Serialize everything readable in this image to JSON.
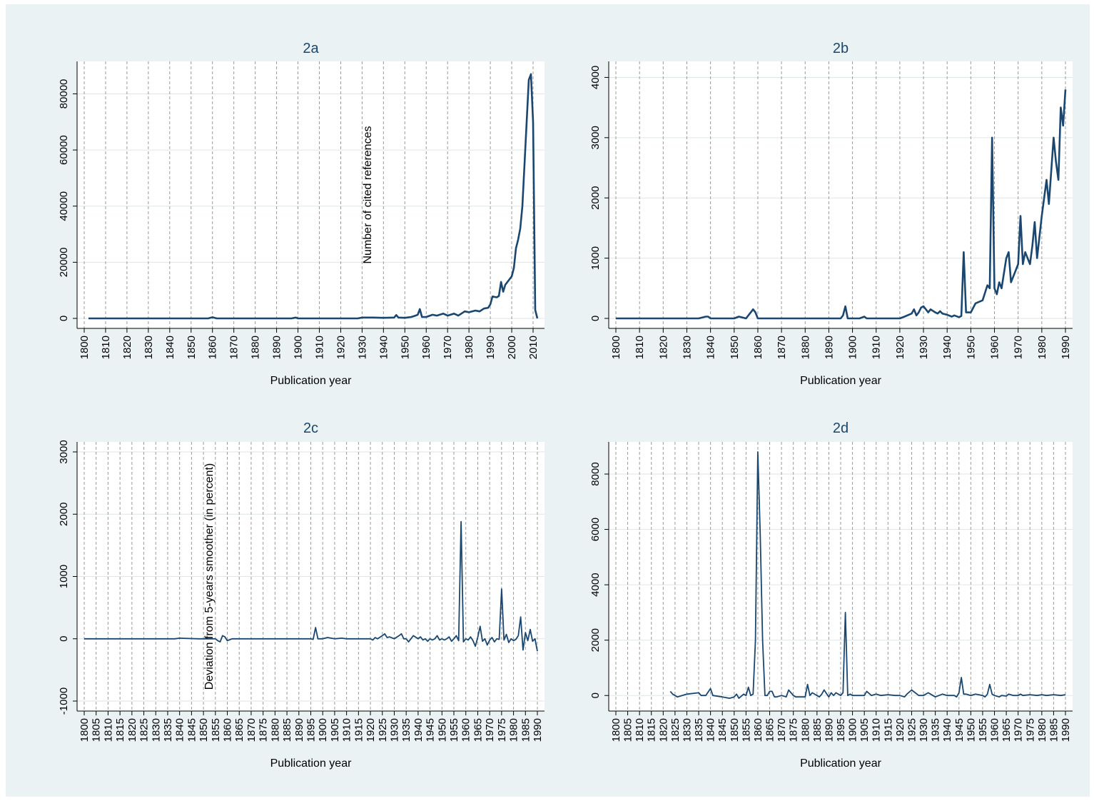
{
  "figure": {
    "background": "#eaf2f3",
    "plot_background": "#ffffff",
    "line_color": "#1a476f",
    "grid_color": "#dfe6e8"
  },
  "chart_data": [
    {
      "id": "2a",
      "type": "line",
      "title": "2a",
      "xlabel": "Publication year",
      "ylabel": "Number of cited references",
      "xlim": [
        1800,
        2012
      ],
      "ylim": [
        0,
        88000
      ],
      "xticks": [
        1800,
        1810,
        1820,
        1830,
        1840,
        1850,
        1860,
        1870,
        1880,
        1890,
        1900,
        1910,
        1920,
        1930,
        1940,
        1950,
        1960,
        1970,
        1980,
        1990,
        2000,
        2010
      ],
      "yticks": [
        0,
        20000,
        40000,
        60000,
        80000
      ],
      "vgrid_dashed": true,
      "series": [
        {
          "x": [
            1802,
            1850,
            1858,
            1860,
            1862,
            1897,
            1899,
            1900,
            1928,
            1930,
            1935,
            1940,
            1945,
            1946,
            1947,
            1950,
            1953,
            1955,
            1956,
            1957,
            1958,
            1960,
            1963,
            1965,
            1968,
            1970,
            1973,
            1975,
            1978,
            1980,
            1983,
            1985,
            1987,
            1989,
            1990,
            1991,
            1993,
            1994,
            1995,
            1996,
            1997,
            1998,
            1999,
            2000,
            2001,
            2002,
            2003,
            2004,
            2005,
            2006,
            2007,
            2008,
            2009,
            2010,
            2011,
            2012
          ],
          "y": [
            0,
            0,
            0,
            400,
            0,
            0,
            300,
            0,
            0,
            300,
            300,
            200,
            300,
            1200,
            300,
            200,
            500,
            1000,
            1300,
            3300,
            500,
            500,
            1300,
            1000,
            1700,
            1000,
            1700,
            1000,
            2500,
            2200,
            2800,
            2500,
            3500,
            3800,
            5000,
            7800,
            7500,
            8000,
            13000,
            9500,
            12000,
            13000,
            14000,
            15000,
            18000,
            25000,
            28000,
            32000,
            40000,
            55000,
            70000,
            85000,
            87000,
            70000,
            3000,
            0
          ]
        }
      ]
    },
    {
      "id": "2b",
      "type": "line",
      "title": "2b",
      "xlabel": "Publication year",
      "ylabel": "",
      "xlim": [
        1800,
        1990
      ],
      "ylim": [
        0,
        4100
      ],
      "xticks": [
        1800,
        1810,
        1820,
        1830,
        1840,
        1850,
        1860,
        1870,
        1880,
        1890,
        1900,
        1910,
        1920,
        1930,
        1940,
        1950,
        1960,
        1970,
        1980,
        1990
      ],
      "yticks": [
        0,
        1000,
        2000,
        3000,
        4000
      ],
      "vgrid_dashed": true,
      "series": [
        {
          "x": [
            1800,
            1804,
            1805,
            1810,
            1820,
            1835,
            1838,
            1839,
            1840,
            1845,
            1850,
            1852,
            1855,
            1857,
            1858,
            1859,
            1860,
            1861,
            1865,
            1870,
            1875,
            1880,
            1885,
            1890,
            1895,
            1896,
            1897,
            1898,
            1899,
            1900,
            1903,
            1905,
            1906,
            1910,
            1915,
            1920,
            1922,
            1925,
            1926,
            1927,
            1928,
            1929,
            1930,
            1932,
            1933,
            1935,
            1936,
            1937,
            1938,
            1940,
            1942,
            1943,
            1945,
            1946,
            1947,
            1948,
            1950,
            1952,
            1955,
            1957,
            1958,
            1959,
            1960,
            1961,
            1962,
            1963,
            1965,
            1966,
            1967,
            1969,
            1970,
            1971,
            1972,
            1973,
            1975,
            1976,
            1977,
            1978,
            1980,
            1982,
            1983,
            1985,
            1986,
            1987,
            1988,
            1989,
            1990
          ],
          "y": [
            0,
            0,
            0,
            0,
            0,
            0,
            30,
            30,
            0,
            0,
            0,
            30,
            0,
            100,
            150,
            100,
            0,
            0,
            0,
            0,
            0,
            0,
            0,
            0,
            0,
            50,
            200,
            0,
            0,
            0,
            0,
            30,
            0,
            0,
            0,
            0,
            30,
            80,
            150,
            50,
            100,
            180,
            200,
            100,
            150,
            100,
            80,
            120,
            80,
            60,
            30,
            50,
            20,
            40,
            1100,
            100,
            100,
            250,
            300,
            550,
            500,
            3000,
            500,
            400,
            600,
            500,
            1000,
            1100,
            600,
            800,
            900,
            1700,
            900,
            1100,
            900,
            1200,
            1600,
            1000,
            1700,
            2300,
            1900,
            3000,
            2600,
            2300,
            3500,
            3200,
            3800
          ]
        }
      ]
    },
    {
      "id": "2c",
      "type": "line",
      "title": "2c",
      "xlabel": "Publication year",
      "ylabel": "Deviation from 5-years smoother (in percent)",
      "xlim": [
        1800,
        1990
      ],
      "ylim": [
        -1000,
        3000
      ],
      "xticks": [
        1800,
        1805,
        1810,
        1815,
        1820,
        1825,
        1830,
        1835,
        1840,
        1845,
        1850,
        1855,
        1860,
        1865,
        1870,
        1875,
        1880,
        1885,
        1890,
        1895,
        1900,
        1905,
        1910,
        1915,
        1920,
        1925,
        1930,
        1935,
        1940,
        1945,
        1950,
        1955,
        1960,
        1965,
        1970,
        1975,
        1980,
        1985,
        1990
      ],
      "yticks": [
        -1000,
        0,
        1000,
        2000,
        3000
      ],
      "vgrid_dashed": true,
      "series": [
        {
          "x": [
            1800,
            1838,
            1840,
            1848,
            1855,
            1856,
            1857,
            1858,
            1859,
            1860,
            1862,
            1895,
            1896,
            1897,
            1898,
            1900,
            1902,
            1905,
            1908,
            1910,
            1915,
            1920,
            1921,
            1922,
            1923,
            1925,
            1926,
            1927,
            1928,
            1930,
            1932,
            1933,
            1934,
            1935,
            1936,
            1938,
            1940,
            1941,
            1942,
            1943,
            1944,
            1945,
            1946,
            1947,
            1948,
            1949,
            1950,
            1951,
            1952,
            1953,
            1954,
            1955,
            1956,
            1957,
            1958,
            1959,
            1960,
            1961,
            1962,
            1963,
            1964,
            1965,
            1966,
            1967,
            1968,
            1969,
            1970,
            1971,
            1972,
            1973,
            1974,
            1975,
            1976,
            1977,
            1978,
            1979,
            1980,
            1981,
            1982,
            1983,
            1984,
            1985,
            1986,
            1987,
            1988,
            1989,
            1990
          ],
          "y": [
            0,
            0,
            10,
            0,
            0,
            -30,
            -50,
            50,
            30,
            -30,
            0,
            0,
            -10,
            180,
            0,
            0,
            20,
            0,
            10,
            0,
            0,
            0,
            -20,
            20,
            0,
            50,
            80,
            20,
            30,
            0,
            50,
            80,
            0,
            0,
            -50,
            50,
            0,
            30,
            -20,
            0,
            -40,
            0,
            -20,
            0,
            50,
            -20,
            0,
            -20,
            0,
            30,
            -40,
            0,
            50,
            -30,
            1880,
            -50,
            0,
            -20,
            30,
            -30,
            -120,
            20,
            200,
            -40,
            0,
            -100,
            -20,
            20,
            -50,
            0,
            -10,
            800,
            -20,
            70,
            -60,
            0,
            -30,
            -10,
            50,
            350,
            -180,
            100,
            -30,
            150,
            -40,
            0,
            -200
          ]
        }
      ]
    },
    {
      "id": "2d",
      "type": "line",
      "title": "2d",
      "xlabel": "Publication year",
      "ylabel": "",
      "xlim": [
        1800,
        1990
      ],
      "ylim": [
        -200,
        8800
      ],
      "xticks": [
        1800,
        1805,
        1810,
        1815,
        1820,
        1825,
        1830,
        1835,
        1840,
        1845,
        1850,
        1855,
        1860,
        1865,
        1870,
        1875,
        1880,
        1885,
        1890,
        1895,
        1900,
        1905,
        1910,
        1915,
        1920,
        1925,
        1930,
        1935,
        1940,
        1945,
        1950,
        1955,
        1960,
        1965,
        1970,
        1975,
        1980,
        1985,
        1990
      ],
      "yticks": [
        0,
        2000,
        4000,
        6000,
        8000
      ],
      "vgrid_dashed": true,
      "series": [
        {
          "x": [
            1823,
            1824,
            1826,
            1830,
            1835,
            1836,
            1838,
            1840,
            1841,
            1845,
            1848,
            1850,
            1851,
            1852,
            1854,
            1855,
            1856,
            1857,
            1858,
            1859,
            1860,
            1861,
            1862,
            1863,
            1864,
            1865,
            1866,
            1867,
            1868,
            1870,
            1872,
            1873,
            1875,
            1876,
            1878,
            1880,
            1881,
            1882,
            1883,
            1885,
            1886,
            1887,
            1888,
            1890,
            1891,
            1892,
            1893,
            1895,
            1896,
            1897,
            1898,
            1899,
            1900,
            1902,
            1905,
            1906,
            1908,
            1910,
            1912,
            1915,
            1918,
            1920,
            1922,
            1923,
            1925,
            1928,
            1930,
            1932,
            1933,
            1935,
            1938,
            1940,
            1942,
            1943,
            1944,
            1945,
            1946,
            1947,
            1948,
            1950,
            1952,
            1955,
            1956,
            1957,
            1958,
            1959,
            1960,
            1962,
            1963,
            1965,
            1966,
            1968,
            1970,
            1971,
            1972,
            1975,
            1978,
            1980,
            1982,
            1985,
            1988,
            1990
          ],
          "y": [
            150,
            50,
            -50,
            50,
            100,
            0,
            0,
            250,
            0,
            -50,
            -100,
            -50,
            50,
            -100,
            50,
            0,
            300,
            0,
            50,
            2000,
            8800,
            5800,
            2000,
            0,
            0,
            150,
            150,
            -50,
            -50,
            0,
            -50,
            200,
            0,
            -50,
            -50,
            -50,
            400,
            0,
            100,
            0,
            -50,
            50,
            200,
            -50,
            100,
            0,
            100,
            0,
            100,
            3000,
            0,
            50,
            0,
            0,
            0,
            150,
            0,
            50,
            0,
            30,
            0,
            0,
            -50,
            50,
            200,
            0,
            0,
            100,
            50,
            -50,
            50,
            0,
            0,
            0,
            -50,
            100,
            650,
            50,
            50,
            0,
            50,
            0,
            -50,
            50,
            400,
            50,
            0,
            -50,
            0,
            -20,
            50,
            0,
            0,
            50,
            0,
            30,
            0,
            30,
            0,
            30,
            0,
            30
          ]
        }
      ]
    }
  ]
}
